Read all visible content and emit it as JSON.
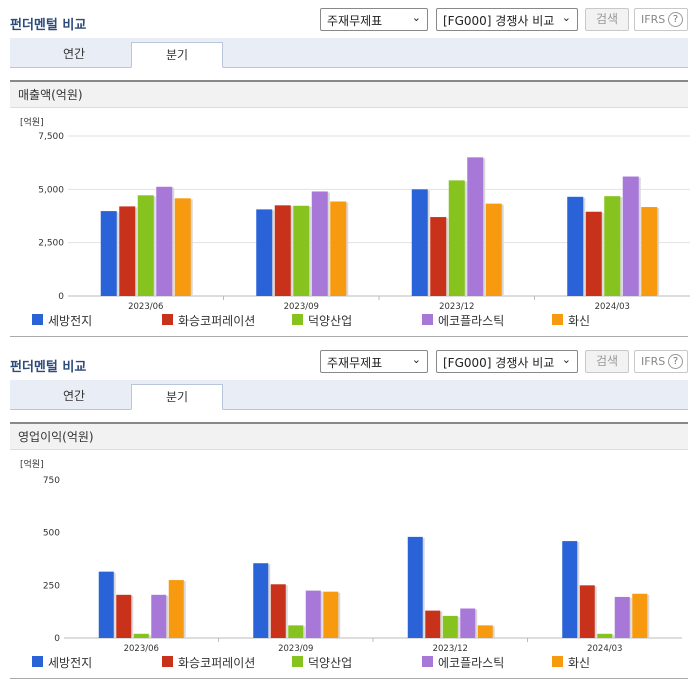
{
  "panels": [
    {
      "title": "펀더멘털 비교",
      "select1": "주재무제표",
      "select2": "[FG000] 경쟁사 비교",
      "search_label": "검색",
      "ifrs_label": "IFRS",
      "help_icon": "?",
      "tabs": [
        "연간",
        "분기"
      ],
      "section_title": "매출액(억원)",
      "legend": [
        "세방전지",
        "화승코퍼레이션",
        "덕양산업",
        "에코플라스틱",
        "화신"
      ]
    },
    {
      "title": "펀더멘털 비교",
      "select1": "주재무제표",
      "select2": "[FG000] 경쟁사 비교",
      "search_label": "검색",
      "ifrs_label": "IFRS",
      "help_icon": "?",
      "tabs": [
        "연간",
        "분기"
      ],
      "section_title": "영업이익(억원)",
      "legend": [
        "세방전지",
        "화승코퍼레이션",
        "덕양산업",
        "에코플라스틱",
        "화신"
      ]
    }
  ],
  "colors": [
    "#2a62d8",
    "#c8321a",
    "#86c31e",
    "#a778d8",
    "#f79a10"
  ],
  "chart_data": [
    {
      "type": "bar",
      "unit_label": "[억원]",
      "categories": [
        "2023/06",
        "2023/09",
        "2023/12",
        "2024/03"
      ],
      "ylim": [
        0,
        7500
      ],
      "yticks": [
        0,
        2500,
        5000,
        7500
      ],
      "ytick_labels": [
        "0",
        "2,500",
        "5,000",
        "7,500"
      ],
      "grid": true,
      "series": [
        {
          "name": "세방전지",
          "values": [
            3980,
            4060,
            5000,
            4650
          ]
        },
        {
          "name": "화승코퍼레이션",
          "values": [
            4200,
            4250,
            3700,
            3950
          ]
        },
        {
          "name": "덕양산업",
          "values": [
            4720,
            4230,
            5420,
            4680
          ]
        },
        {
          "name": "에코플라스틱",
          "values": [
            5120,
            4900,
            6500,
            5600
          ]
        },
        {
          "name": "화신",
          "values": [
            4580,
            4430,
            4330,
            4170
          ]
        }
      ]
    },
    {
      "type": "bar",
      "unit_label": "[억원]",
      "categories": [
        "2023/06",
        "2023/09",
        "2023/12",
        "2024/03"
      ],
      "ylim": [
        0,
        750
      ],
      "yticks": [
        0,
        250,
        500,
        750
      ],
      "ytick_labels": [
        "0",
        "250",
        "500",
        "750"
      ],
      "grid": false,
      "series": [
        {
          "name": "세방전지",
          "values": [
            315,
            355,
            480,
            460
          ]
        },
        {
          "name": "화승코퍼레이션",
          "values": [
            205,
            255,
            130,
            250
          ]
        },
        {
          "name": "덕양산업",
          "values": [
            20,
            60,
            105,
            20
          ]
        },
        {
          "name": "에코플라스틱",
          "values": [
            205,
            225,
            140,
            195
          ]
        },
        {
          "name": "화신",
          "values": [
            275,
            220,
            60,
            210
          ]
        }
      ]
    }
  ]
}
